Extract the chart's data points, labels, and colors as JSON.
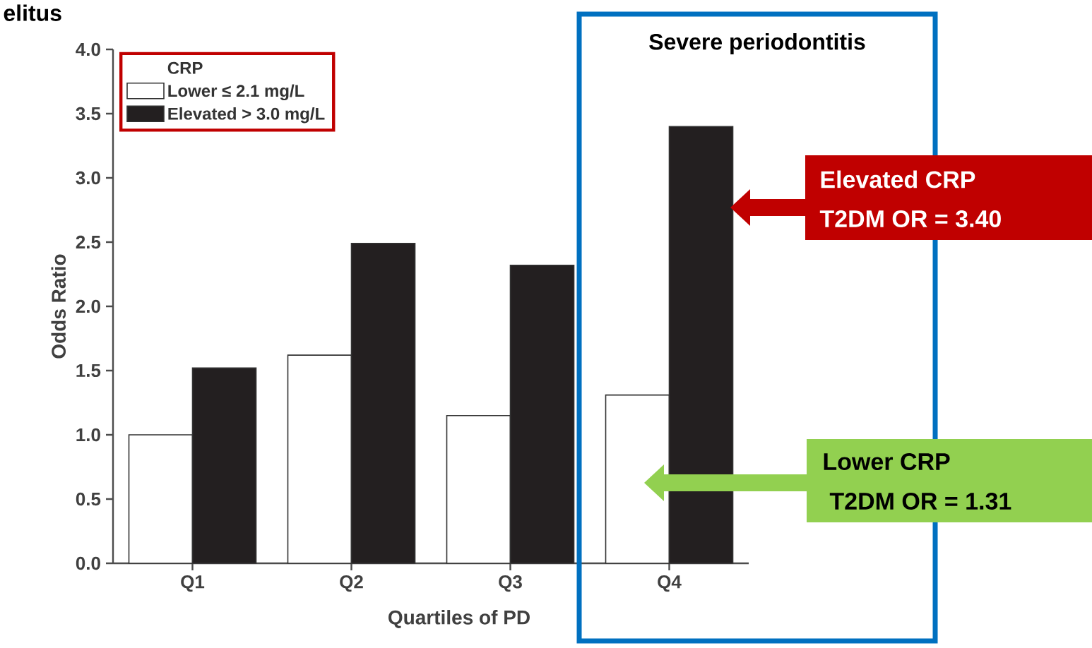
{
  "chart_data": {
    "type": "bar",
    "title": "elitus",
    "categories": [
      "Q1",
      "Q2",
      "Q3",
      "Q4"
    ],
    "series": [
      {
        "name": "Lower ≤ 2.1 mg/L",
        "color": "#ffffff",
        "values": [
          1.0,
          1.62,
          1.15,
          1.31
        ]
      },
      {
        "name": "Elevated > 3.0 mg/L",
        "color": "#231f20",
        "values": [
          1.52,
          2.49,
          2.32,
          3.4
        ]
      }
    ],
    "xlabel": "Quartiles of PD",
    "ylabel": "Odds Ratio",
    "legend_title": "CRP",
    "legend": "top left",
    "ylim": [
      0,
      4
    ],
    "yticks": [
      {
        "value": 0,
        "label": "0.0"
      },
      {
        "value": 0.5,
        "label": "0.5"
      },
      {
        "value": 1,
        "label": "1.0"
      },
      {
        "value": 1.5,
        "label": "1.5"
      },
      {
        "value": 2,
        "label": "2.0"
      },
      {
        "value": 2.5,
        "label": "2.5"
      },
      {
        "value": 3,
        "label": "3.0"
      },
      {
        "value": 3.5,
        "label": "3.5"
      },
      {
        "value": 4,
        "label": "4.0"
      }
    ],
    "annotations": [
      "Severe periodontitis",
      "Elevated CRP",
      "T2DM OR = 3.40",
      "Lower CRP",
      "T2DM OR = 1.31"
    ]
  }
}
